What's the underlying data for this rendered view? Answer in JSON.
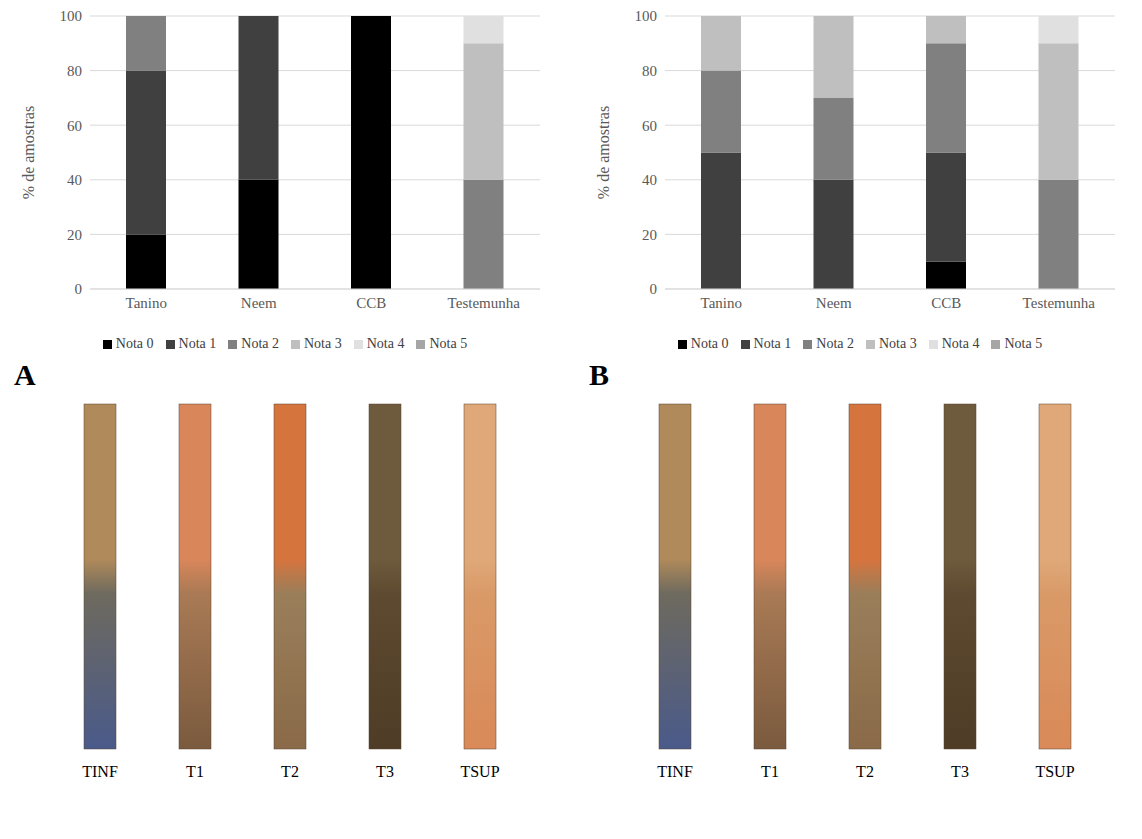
{
  "chart_data": [
    {
      "type": "bar",
      "stacked": true,
      "grid": true,
      "legend": "bottom",
      "panel_label": "A",
      "y_label": "% de amostras",
      "categories": [
        "Tanino",
        "Neem",
        "CCB",
        "Testemunha"
      ],
      "ylim": [
        0,
        100
      ],
      "yticks": [
        0,
        20,
        40,
        60,
        80,
        100
      ],
      "series": [
        {
          "name": "Nota 0",
          "color": "#000000",
          "values": [
            20,
            40,
            100,
            0
          ]
        },
        {
          "name": "Nota 1",
          "color": "#404040",
          "values": [
            60,
            60,
            0,
            0
          ]
        },
        {
          "name": "Nota 2",
          "color": "#808080",
          "values": [
            20,
            0,
            0,
            40
          ]
        },
        {
          "name": "Nota 3",
          "color": "#bfbfbf",
          "values": [
            0,
            0,
            0,
            50
          ]
        },
        {
          "name": "Nota 4",
          "color": "#e0e0e0",
          "values": [
            0,
            0,
            0,
            10
          ]
        },
        {
          "name": "Nota 5",
          "color": "#a6a6a6",
          "values": [
            0,
            0,
            0,
            0
          ]
        }
      ]
    },
    {
      "type": "bar",
      "stacked": true,
      "grid": true,
      "legend": "bottom",
      "panel_label": "B",
      "y_label": "% de amostras",
      "categories": [
        "Tanino",
        "Neem",
        "CCB",
        "Testemunha"
      ],
      "ylim": [
        0,
        100
      ],
      "yticks": [
        0,
        20,
        40,
        60,
        80,
        100
      ],
      "series": [
        {
          "name": "Nota 0",
          "color": "#000000",
          "values": [
            0,
            0,
            10,
            0
          ]
        },
        {
          "name": "Nota 1",
          "color": "#404040",
          "values": [
            50,
            40,
            40,
            0
          ]
        },
        {
          "name": "Nota 2",
          "color": "#808080",
          "values": [
            30,
            30,
            40,
            40
          ]
        },
        {
          "name": "Nota 3",
          "color": "#bfbfbf",
          "values": [
            20,
            30,
            10,
            50
          ]
        },
        {
          "name": "Nota 4",
          "color": "#e0e0e0",
          "values": [
            0,
            0,
            0,
            10
          ]
        },
        {
          "name": "Nota 5",
          "color": "#a6a6a6",
          "values": [
            0,
            0,
            0,
            0
          ]
        }
      ]
    }
  ],
  "photos": [
    {
      "labels": [
        "TINF",
        "T1",
        "T2",
        "T3",
        "TSUP"
      ]
    },
    {
      "labels": [
        "TINF",
        "T1",
        "T2",
        "T3",
        "TSUP"
      ]
    }
  ]
}
